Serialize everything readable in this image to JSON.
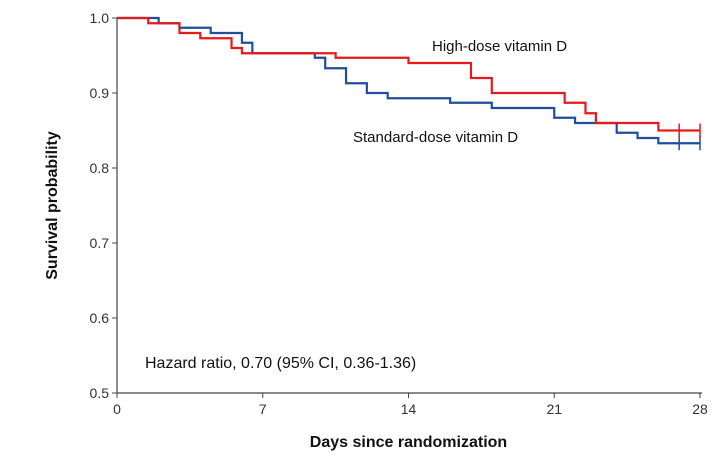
{
  "chart_data": {
    "type": "line",
    "subtype": "kaplan-meier step",
    "xlabel": "Days since randomization",
    "ylabel": "Survival probability",
    "xlim": [
      0,
      28
    ],
    "ylim": [
      0.5,
      1.0
    ],
    "xticks": [
      0,
      7,
      14,
      21,
      28
    ],
    "yticks": [
      0.5,
      0.6,
      0.7,
      0.8,
      0.9,
      1.0
    ],
    "xtick_labels": [
      "0",
      "7",
      "14",
      "21",
      "28"
    ],
    "ytick_labels": [
      "0.5",
      "0.6",
      "0.7",
      "0.8",
      "0.9",
      "1.0"
    ],
    "grid": false,
    "legend": "none",
    "annotation": "Hazard ratio, 0.70 (95% CI, 0.36-1.36)",
    "series": [
      {
        "name": "High-dose vitamin D",
        "color": "#e41a1c",
        "steps": [
          [
            0,
            1.0
          ],
          [
            1.5,
            0.993
          ],
          [
            3,
            0.98
          ],
          [
            4,
            0.973
          ],
          [
            5.5,
            0.96
          ],
          [
            6,
            0.953
          ],
          [
            10.5,
            0.947
          ],
          [
            14,
            0.94
          ],
          [
            17,
            0.92
          ],
          [
            18,
            0.9
          ],
          [
            21.5,
            0.887
          ],
          [
            22.5,
            0.873
          ],
          [
            23,
            0.86
          ],
          [
            26,
            0.85
          ],
          [
            28,
            0.85
          ]
        ],
        "censor_x": [
          27
        ]
      },
      {
        "name": "Standard-dose vitamin D",
        "color": "#1f4e9c",
        "steps": [
          [
            0,
            1.0
          ],
          [
            2,
            0.993
          ],
          [
            3,
            0.987
          ],
          [
            4.5,
            0.98
          ],
          [
            6,
            0.967
          ],
          [
            6.5,
            0.953
          ],
          [
            9.5,
            0.947
          ],
          [
            10,
            0.933
          ],
          [
            11,
            0.913
          ],
          [
            12,
            0.9
          ],
          [
            13,
            0.893
          ],
          [
            16,
            0.887
          ],
          [
            18,
            0.88
          ],
          [
            21,
            0.867
          ],
          [
            22,
            0.86
          ],
          [
            24,
            0.847
          ],
          [
            25,
            0.84
          ],
          [
            26,
            0.833
          ],
          [
            28,
            0.833
          ]
        ],
        "censor_x": [
          27
        ]
      }
    ]
  }
}
